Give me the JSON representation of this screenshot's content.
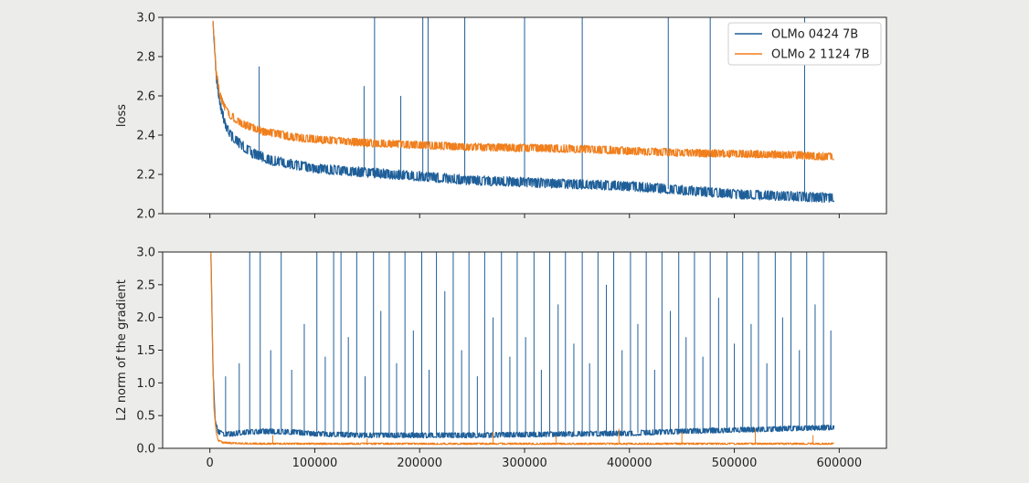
{
  "chart_data": [
    {
      "type": "line",
      "title": "",
      "xlabel": "",
      "ylabel": "loss",
      "xlim": [
        -45000,
        645000
      ],
      "ylim": [
        2.0,
        3.0
      ],
      "xticks": [
        0,
        100000,
        200000,
        300000,
        400000,
        500000,
        600000
      ],
      "yticks": [
        2.0,
        2.2,
        2.4,
        2.6,
        2.8,
        3.0
      ],
      "ytick_labels": [
        "2.0",
        "2.2",
        "2.4",
        "2.6",
        "2.8",
        "3.0"
      ],
      "grid": false,
      "legend_position": "top-right",
      "series": [
        {
          "name": "OLMo 0424 7B",
          "color": "#1f5f99",
          "x": [
            3000,
            6000,
            10000,
            15000,
            20000,
            30000,
            40000,
            50000,
            60000,
            80000,
            100000,
            125000,
            150000,
            175000,
            200000,
            250000,
            300000,
            350000,
            400000,
            450000,
            500000,
            550000,
            595000
          ],
          "y": [
            3.0,
            2.7,
            2.55,
            2.45,
            2.4,
            2.35,
            2.31,
            2.29,
            2.27,
            2.25,
            2.23,
            2.22,
            2.21,
            2.2,
            2.19,
            2.17,
            2.16,
            2.15,
            2.14,
            2.12,
            2.1,
            2.09,
            2.08
          ],
          "band": 0.025,
          "spikes": [
            {
              "x": 47000,
              "y": 2.75
            },
            {
              "x": 147000,
              "y": 2.65
            },
            {
              "x": 157000,
              "y": 3.0
            },
            {
              "x": 182000,
              "y": 2.6
            },
            {
              "x": 203000,
              "y": 3.0
            },
            {
              "x": 208000,
              "y": 3.0
            },
            {
              "x": 243000,
              "y": 3.0
            },
            {
              "x": 300000,
              "y": 3.0
            },
            {
              "x": 355000,
              "y": 3.0
            },
            {
              "x": 437000,
              "y": 3.0
            },
            {
              "x": 477000,
              "y": 3.0
            },
            {
              "x": 567000,
              "y": 3.0
            }
          ]
        },
        {
          "name": "OLMo 2 1124 7B",
          "color": "#f07f1d",
          "x": [
            3000,
            6000,
            10000,
            15000,
            20000,
            30000,
            40000,
            50000,
            60000,
            80000,
            100000,
            125000,
            150000,
            175000,
            200000,
            250000,
            300000,
            350000,
            400000,
            450000,
            500000,
            550000,
            595000
          ],
          "y": [
            3.0,
            2.72,
            2.6,
            2.53,
            2.5,
            2.46,
            2.44,
            2.42,
            2.41,
            2.39,
            2.38,
            2.37,
            2.36,
            2.355,
            2.35,
            2.34,
            2.335,
            2.33,
            2.32,
            2.31,
            2.305,
            2.3,
            2.29
          ],
          "band": 0.02,
          "spikes": []
        }
      ]
    },
    {
      "type": "line",
      "title": "",
      "xlabel": "",
      "ylabel": "L2 norm of the gradient",
      "xlim": [
        -45000,
        645000
      ],
      "ylim": [
        0.0,
        3.0
      ],
      "xticks": [
        0,
        100000,
        200000,
        300000,
        400000,
        500000,
        600000
      ],
      "xtick_labels": [
        "0",
        "100000",
        "200000",
        "300000",
        "400000",
        "500000",
        "600000"
      ],
      "yticks": [
        0.0,
        0.5,
        1.0,
        1.5,
        2.0,
        2.5,
        3.0
      ],
      "ytick_labels": [
        "0.0",
        "0.5",
        "1.0",
        "1.5",
        "2.0",
        "2.5",
        "3.0"
      ],
      "grid": false,
      "series": [
        {
          "name": "OLMo 0424 7B",
          "color": "#1f5f99",
          "x": [
            1000,
            3000,
            5000,
            8000,
            12000,
            20000,
            30000,
            50000,
            80000,
            100000,
            150000,
            200000,
            250000,
            300000,
            350000,
            400000,
            450000,
            500000,
            550000,
            595000
          ],
          "y": [
            3.0,
            1.2,
            0.4,
            0.25,
            0.22,
            0.22,
            0.24,
            0.26,
            0.25,
            0.22,
            0.2,
            0.2,
            0.2,
            0.21,
            0.22,
            0.23,
            0.26,
            0.28,
            0.3,
            0.32
          ],
          "band": 0.04,
          "spikes": [
            {
              "x": 15000,
              "y": 1.1
            },
            {
              "x": 28000,
              "y": 1.3
            },
            {
              "x": 38000,
              "y": 3.0
            },
            {
              "x": 48000,
              "y": 3.0
            },
            {
              "x": 58000,
              "y": 1.5
            },
            {
              "x": 68000,
              "y": 3.0
            },
            {
              "x": 78000,
              "y": 1.2
            },
            {
              "x": 90000,
              "y": 1.9
            },
            {
              "x": 102000,
              "y": 3.0
            },
            {
              "x": 110000,
              "y": 1.4
            },
            {
              "x": 118000,
              "y": 3.0
            },
            {
              "x": 125000,
              "y": 3.0
            },
            {
              "x": 132000,
              "y": 1.7
            },
            {
              "x": 140000,
              "y": 3.0
            },
            {
              "x": 148000,
              "y": 1.1
            },
            {
              "x": 156000,
              "y": 3.0
            },
            {
              "x": 163000,
              "y": 2.1
            },
            {
              "x": 171000,
              "y": 3.0
            },
            {
              "x": 178000,
              "y": 1.3
            },
            {
              "x": 186000,
              "y": 3.0
            },
            {
              "x": 194000,
              "y": 1.8
            },
            {
              "x": 202000,
              "y": 3.0
            },
            {
              "x": 209000,
              "y": 1.2
            },
            {
              "x": 216000,
              "y": 3.0
            },
            {
              "x": 224000,
              "y": 2.4
            },
            {
              "x": 232000,
              "y": 3.0
            },
            {
              "x": 240000,
              "y": 1.5
            },
            {
              "x": 247000,
              "y": 3.0
            },
            {
              "x": 255000,
              "y": 1.1
            },
            {
              "x": 262000,
              "y": 3.0
            },
            {
              "x": 270000,
              "y": 2.0
            },
            {
              "x": 278000,
              "y": 3.0
            },
            {
              "x": 286000,
              "y": 1.4
            },
            {
              "x": 293000,
              "y": 3.0
            },
            {
              "x": 301000,
              "y": 1.7
            },
            {
              "x": 309000,
              "y": 3.0
            },
            {
              "x": 316000,
              "y": 1.2
            },
            {
              "x": 324000,
              "y": 3.0
            },
            {
              "x": 332000,
              "y": 2.2
            },
            {
              "x": 339000,
              "y": 3.0
            },
            {
              "x": 347000,
              "y": 1.6
            },
            {
              "x": 355000,
              "y": 3.0
            },
            {
              "x": 362000,
              "y": 1.3
            },
            {
              "x": 370000,
              "y": 3.0
            },
            {
              "x": 378000,
              "y": 2.5
            },
            {
              "x": 385000,
              "y": 3.0
            },
            {
              "x": 393000,
              "y": 1.5
            },
            {
              "x": 401000,
              "y": 3.0
            },
            {
              "x": 408000,
              "y": 1.9
            },
            {
              "x": 416000,
              "y": 3.0
            },
            {
              "x": 424000,
              "y": 1.2
            },
            {
              "x": 431000,
              "y": 3.0
            },
            {
              "x": 439000,
              "y": 2.1
            },
            {
              "x": 447000,
              "y": 3.0
            },
            {
              "x": 454000,
              "y": 1.7
            },
            {
              "x": 462000,
              "y": 3.0
            },
            {
              "x": 470000,
              "y": 1.4
            },
            {
              "x": 477000,
              "y": 3.0
            },
            {
              "x": 485000,
              "y": 2.3
            },
            {
              "x": 493000,
              "y": 3.0
            },
            {
              "x": 500000,
              "y": 1.6
            },
            {
              "x": 508000,
              "y": 3.0
            },
            {
              "x": 516000,
              "y": 1.9
            },
            {
              "x": 523000,
              "y": 3.0
            },
            {
              "x": 531000,
              "y": 1.3
            },
            {
              "x": 539000,
              "y": 3.0
            },
            {
              "x": 546000,
              "y": 2.0
            },
            {
              "x": 554000,
              "y": 3.0
            },
            {
              "x": 562000,
              "y": 1.5
            },
            {
              "x": 569000,
              "y": 3.0
            },
            {
              "x": 577000,
              "y": 2.2
            },
            {
              "x": 585000,
              "y": 3.0
            },
            {
              "x": 592000,
              "y": 1.8
            }
          ]
        },
        {
          "name": "OLMo 2 1124 7B",
          "color": "#f07f1d",
          "x": [
            1000,
            2000,
            4000,
            6000,
            8000,
            12000,
            20000,
            50000,
            100000,
            200000,
            300000,
            400000,
            500000,
            595000
          ],
          "y": [
            3.0,
            2.0,
            0.6,
            0.25,
            0.12,
            0.09,
            0.08,
            0.07,
            0.07,
            0.07,
            0.07,
            0.07,
            0.07,
            0.07
          ],
          "band": 0.012,
          "spikes": [
            {
              "x": 60000,
              "y": 0.2
            },
            {
              "x": 150000,
              "y": 0.15
            },
            {
              "x": 270000,
              "y": 0.25
            },
            {
              "x": 330000,
              "y": 0.2
            },
            {
              "x": 390000,
              "y": 0.3
            },
            {
              "x": 450000,
              "y": 0.25
            },
            {
              "x": 520000,
              "y": 0.3
            },
            {
              "x": 575000,
              "y": 0.2
            }
          ]
        }
      ]
    }
  ]
}
